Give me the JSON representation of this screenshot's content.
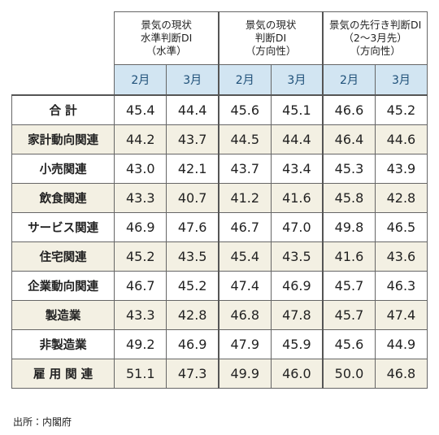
{
  "table": {
    "groups": [
      [
        "景気の現状",
        "水準判断DI",
        "（水準）"
      ],
      [
        "景気の現状",
        "判断DI",
        "（方向性）"
      ],
      [
        "景気の先行き判断DI",
        "（2～3月先）",
        "（方向性）"
      ]
    ],
    "subheaders": [
      "2月",
      "3月",
      "2月",
      "3月",
      "2月",
      "3月"
    ],
    "rows": [
      {
        "label": "合 計",
        "values": [
          "45.4",
          "44.4",
          "45.6",
          "45.1",
          "46.6",
          "45.2"
        ]
      },
      {
        "label": "家計動向関連",
        "values": [
          "44.2",
          "43.7",
          "44.5",
          "44.4",
          "46.4",
          "44.6"
        ]
      },
      {
        "label": "小売関連",
        "values": [
          "43.0",
          "42.1",
          "43.7",
          "43.4",
          "45.3",
          "43.9"
        ]
      },
      {
        "label": "飲食関連",
        "values": [
          "43.3",
          "40.7",
          "41.2",
          "41.6",
          "45.8",
          "42.8"
        ]
      },
      {
        "label": "サービス関連",
        "values": [
          "46.9",
          "47.6",
          "46.7",
          "47.0",
          "49.8",
          "46.5"
        ]
      },
      {
        "label": "住宅関連",
        "values": [
          "45.2",
          "43.5",
          "45.4",
          "43.5",
          "41.6",
          "43.6"
        ]
      },
      {
        "label": "企業動向関連",
        "values": [
          "46.7",
          "45.2",
          "47.4",
          "46.9",
          "45.7",
          "46.3"
        ]
      },
      {
        "label": "製造業",
        "values": [
          "43.3",
          "42.8",
          "46.8",
          "47.8",
          "45.7",
          "47.4"
        ]
      },
      {
        "label": "非製造業",
        "values": [
          "49.2",
          "46.9",
          "47.9",
          "45.9",
          "45.6",
          "44.9"
        ]
      },
      {
        "label": "雇 用 関 連",
        "values": [
          "51.1",
          "47.3",
          "49.9",
          "46.0",
          "50.0",
          "46.8"
        ]
      }
    ]
  },
  "source": "出所：内閣府"
}
